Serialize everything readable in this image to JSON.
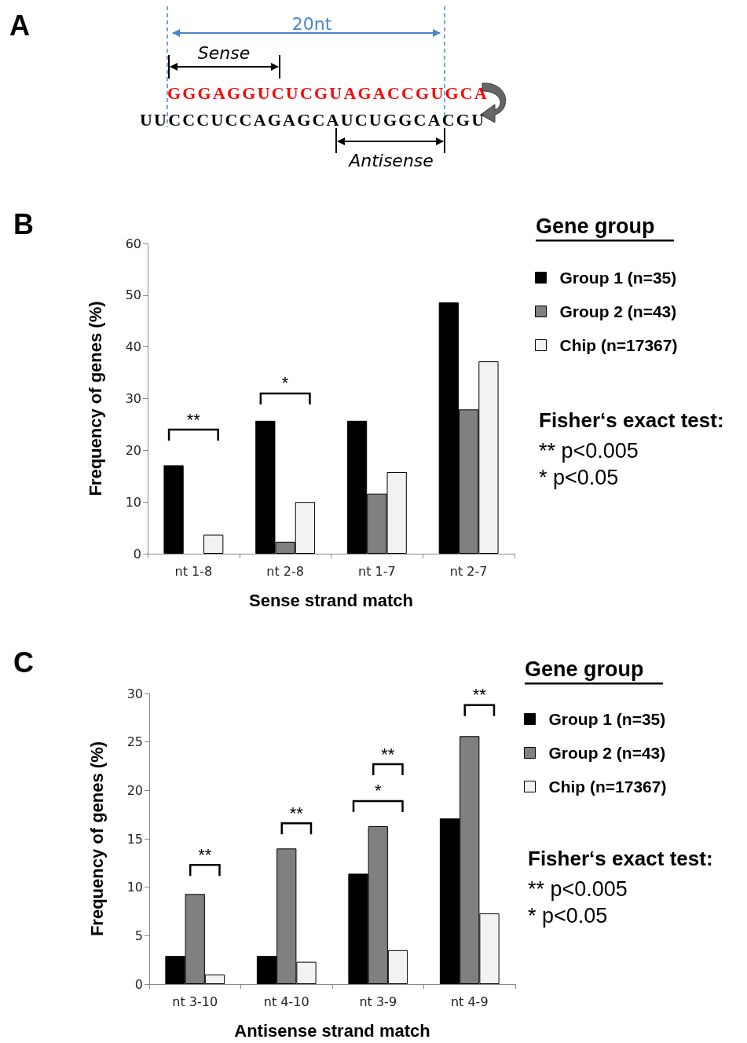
{
  "chart_data": [
    {
      "type": "other",
      "title": "A",
      "annotations": [
        "20nt",
        "Sense",
        "GGGAGGUCUCGUAGACCGUGCA",
        "UUCCCUCCAGAGCAUCUGGCACGU",
        "Antisense"
      ]
    },
    {
      "type": "bar",
      "title": "B",
      "xlabel": "Sense strand match",
      "ylabel": "Frequency of genes (%)",
      "categories": [
        "nt 1-8",
        "nt 2-8",
        "nt 1-7",
        "nt 2-7"
      ],
      "series": [
        {
          "name": "Group 1 (n=35)",
          "color": "#000000",
          "values": [
            17.1,
            25.7,
            25.7,
            48.6
          ]
        },
        {
          "name": "Group 2 (n=43)",
          "color": "#808080",
          "values": [
            0,
            2.3,
            11.6,
            27.9
          ]
        },
        {
          "name": "Chip (n=17367)",
          "color": "#f2f2f2",
          "values": [
            3.7,
            10.0,
            15.8,
            37.2
          ]
        }
      ],
      "ylim": [
        0,
        60
      ],
      "yticks": [
        0,
        10,
        20,
        30,
        40,
        50,
        60
      ],
      "grid": false,
      "legend": "right",
      "legend_title": "Gene group",
      "annotations": [
        "**",
        "*",
        "Fisher‘s exact test:",
        "** p<0.005",
        "* p<0.05"
      ]
    },
    {
      "type": "bar",
      "title": "C",
      "xlabel": "Antisense strand match",
      "ylabel": "Frequency of genes (%)",
      "categories": [
        "nt 3-10",
        "nt 4-10",
        "nt 3-9",
        "nt 4-9"
      ],
      "series": [
        {
          "name": "Group 1 (n=35)",
          "color": "#000000",
          "values": [
            2.9,
            2.9,
            11.4,
            17.1
          ]
        },
        {
          "name": "Group 2 (n=43)",
          "color": "#808080",
          "values": [
            9.3,
            14.0,
            16.3,
            25.6
          ]
        },
        {
          "name": "Chip (n=17367)",
          "color": "#f2f2f2",
          "values": [
            1.0,
            2.3,
            3.5,
            7.3
          ]
        }
      ],
      "ylim": [
        0,
        30
      ],
      "yticks": [
        0,
        5,
        10,
        15,
        20,
        25,
        30
      ],
      "grid": false,
      "legend": "right",
      "legend_title": "Gene group",
      "annotations": [
        "**",
        "**",
        "**",
        "*",
        "**",
        "Fisher‘s exact test:",
        "** p<0.005",
        "* p<0.05"
      ]
    }
  ]
}
